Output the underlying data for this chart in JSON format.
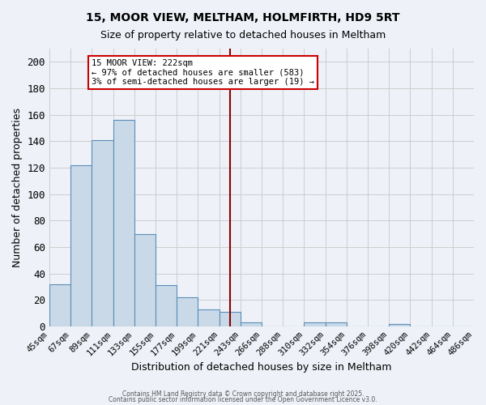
{
  "title1": "15, MOOR VIEW, MELTHAM, HOLMFIRTH, HD9 5RT",
  "title2": "Size of property relative to detached houses in Meltham",
  "xlabel": "Distribution of detached houses by size in Meltham",
  "ylabel": "Number of detached properties",
  "footnote1": "Contains HM Land Registry data © Crown copyright and database right 2025.",
  "footnote2": "Contains public sector information licensed under the Open Government Licence v3.0.",
  "bin_labels": [
    "45sqm",
    "67sqm",
    "89sqm",
    "111sqm",
    "133sqm",
    "155sqm",
    "177sqm",
    "199sqm",
    "221sqm",
    "243sqm",
    "266sqm",
    "288sqm",
    "310sqm",
    "332sqm",
    "354sqm",
    "376sqm",
    "398sqm",
    "420sqm",
    "442sqm",
    "464sqm",
    "486sqm"
  ],
  "bar_heights": [
    32,
    122,
    141,
    156,
    70,
    31,
    22,
    13,
    11,
    3,
    0,
    0,
    3,
    3,
    0,
    0,
    2,
    0,
    0,
    0
  ],
  "bar_color": "#c9d9e8",
  "bar_edge_color": "#5b8db8",
  "grid_color": "#cccccc",
  "bg_color": "#eef2f8",
  "vline_x": 8,
  "vline_color": "#8b0000",
  "annotation_text": "15 MOOR VIEW: 222sqm\n← 97% of detached houses are smaller (583)\n3% of semi-detached houses are larger (19) →",
  "annotation_box_color": "#ffffff",
  "annotation_border_color": "#cc0000",
  "ylim": [
    0,
    210
  ],
  "yticks": [
    0,
    20,
    40,
    60,
    80,
    100,
    120,
    140,
    160,
    180,
    200
  ]
}
